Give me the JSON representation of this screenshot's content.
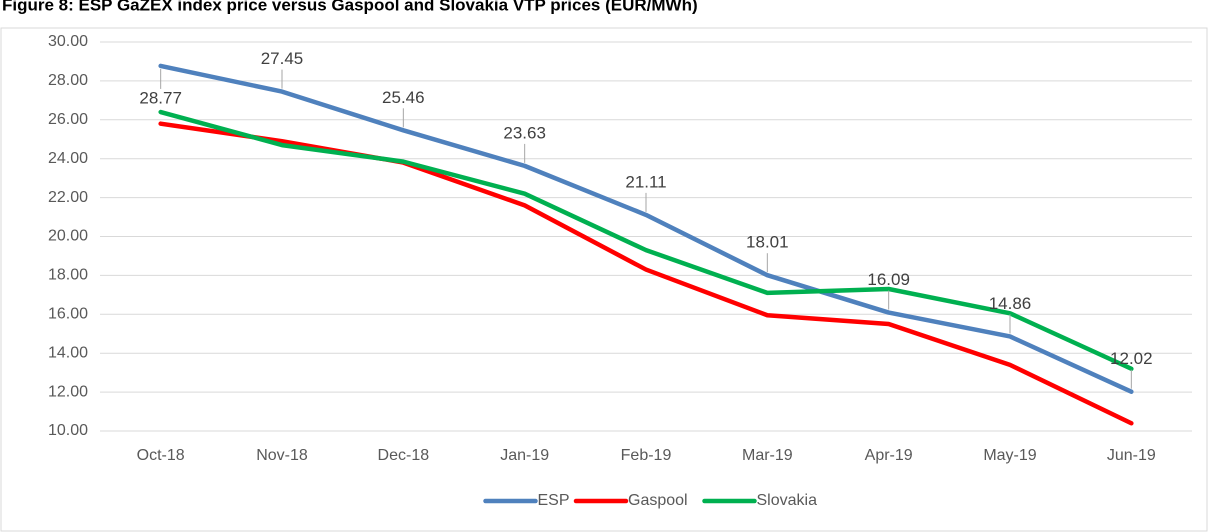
{
  "chart_data": {
    "type": "line",
    "title": "Figure 8: ESP GaZEX index price versus Gaspool and Slovakia VTP prices (EUR/MWh)",
    "categories": [
      "Oct-18",
      "Nov-18",
      "Dec-18",
      "Jan-19",
      "Feb-19",
      "Mar-19",
      "Apr-19",
      "May-19",
      "Jun-19"
    ],
    "series": [
      {
        "name": "ESP",
        "color": "#4f81bd",
        "values": [
          28.77,
          27.45,
          25.46,
          23.63,
          21.11,
          18.01,
          16.09,
          14.86,
          12.02
        ],
        "data_labels": true
      },
      {
        "name": "Gaspool",
        "color": "#ff0000",
        "values": [
          25.8,
          24.9,
          23.8,
          21.6,
          18.3,
          15.95,
          15.5,
          13.4,
          10.4
        ]
      },
      {
        "name": "Slovakia",
        "color": "#00b050",
        "values": [
          26.4,
          24.7,
          23.85,
          22.2,
          19.3,
          17.1,
          17.3,
          16.05,
          13.2
        ]
      }
    ],
    "ylim": [
      10,
      30
    ],
    "yticks": [
      {
        "value": 10,
        "label": "10.00"
      },
      {
        "value": 12,
        "label": "12.00"
      },
      {
        "value": 14,
        "label": "14.00"
      },
      {
        "value": 16,
        "label": "16.00"
      },
      {
        "value": 18,
        "label": "18.00"
      },
      {
        "value": 20,
        "label": "20.00"
      },
      {
        "value": 22,
        "label": "22.00"
      },
      {
        "value": 24,
        "label": "24.00"
      },
      {
        "value": 26,
        "label": "26.00"
      },
      {
        "value": 28,
        "label": "28.00"
      },
      {
        "value": 30,
        "label": "30.00"
      }
    ],
    "grid": true,
    "legend": "bottom"
  }
}
